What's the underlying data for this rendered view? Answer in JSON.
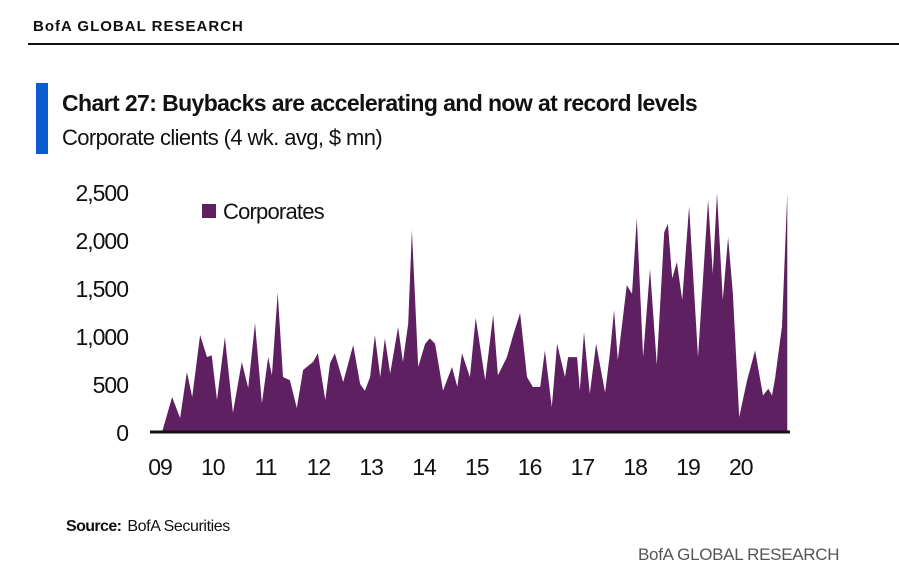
{
  "header": {
    "brand": "BofA GLOBAL RESEARCH"
  },
  "chart_title": "Chart 27: Buybacks are accelerating and now at record levels",
  "chart_subtitle": "Corporate clients (4 wk. avg, $ mn)",
  "source": {
    "label": "Source:",
    "text": "BofA Securities"
  },
  "footer": {
    "brand": "BofA GLOBAL RESEARCH"
  },
  "colors": {
    "series": "#5f2061",
    "accent": "#0a5cd2"
  },
  "chart_data": {
    "type": "area",
    "title": "Chart 27: Buybacks are accelerating and now at record levels",
    "subtitle": "Corporate clients (4 wk. avg, $ mn)",
    "xlabel": "",
    "ylabel": "",
    "ylim": [
      0,
      2500
    ],
    "xlim": [
      2009,
      2020.9
    ],
    "yticks": [
      0,
      500,
      1000,
      1500,
      2000,
      2500
    ],
    "ytick_labels": [
      "0",
      "500",
      "1,000",
      "1,500",
      "2,000",
      "2,500"
    ],
    "xtick_values": [
      2009,
      2010,
      2011,
      2012,
      2013,
      2014,
      2015,
      2016,
      2017,
      2018,
      2019,
      2020
    ],
    "xtick_labels": [
      "09",
      "10",
      "11",
      "12",
      "13",
      "14",
      "15",
      "16",
      "17",
      "18",
      "19",
      "20"
    ],
    "grid": false,
    "legend": {
      "position": "top-left",
      "entries": [
        "Corporates"
      ]
    },
    "series": [
      {
        "name": "Corporates",
        "x": [
          2009.04,
          2009.23,
          2009.38,
          2009.51,
          2009.61,
          2009.76,
          2009.89,
          2009.98,
          2010.08,
          2010.23,
          2010.38,
          2010.55,
          2010.67,
          2010.8,
          2010.93,
          2011.05,
          2011.12,
          2011.23,
          2011.33,
          2011.46,
          2011.59,
          2011.71,
          2011.9,
          2011.99,
          2012.13,
          2012.22,
          2012.31,
          2012.47,
          2012.66,
          2012.79,
          2012.88,
          2012.98,
          2013.07,
          2013.17,
          2013.26,
          2013.36,
          2013.51,
          2013.6,
          2013.7,
          2013.77,
          2013.89,
          2014.02,
          2014.11,
          2014.21,
          2014.36,
          2014.53,
          2014.63,
          2014.72,
          2014.87,
          2014.98,
          2015.16,
          2015.31,
          2015.4,
          2015.57,
          2015.69,
          2015.82,
          2015.95,
          2016.06,
          2016.2,
          2016.29,
          2016.42,
          2016.52,
          2016.67,
          2016.73,
          2016.9,
          2016.95,
          2017.03,
          2017.14,
          2017.26,
          2017.43,
          2017.52,
          2017.6,
          2017.67,
          2017.84,
          2017.94,
          2018.03,
          2018.15,
          2018.28,
          2018.41,
          2018.55,
          2018.62,
          2018.7,
          2018.79,
          2018.89,
          2019.02,
          2019.19,
          2019.38,
          2019.47,
          2019.55,
          2019.66,
          2019.76,
          2019.85,
          2019.97,
          2020.12,
          2020.27,
          2020.42,
          2020.52,
          2020.59,
          2020.65,
          2020.78,
          2020.88
        ],
        "values": [
          0,
          365,
          146,
          625,
          365,
          1010,
          780,
          800,
          333,
          990,
          200,
          730,
          458,
          1135,
          300,
          780,
          590,
          1450,
          573,
          540,
          250,
          646,
          730,
          820,
          333,
          715,
          820,
          520,
          906,
          500,
          430,
          573,
          1010,
          573,
          975,
          610,
          1094,
          730,
          1130,
          2104,
          677,
          920,
          975,
          920,
          430,
          677,
          470,
          820,
          573,
          1190,
          540,
          1220,
          590,
          780,
          1010,
          1240,
          573,
          470,
          470,
          850,
          260,
          920,
          573,
          780,
          780,
          430,
          1040,
          400,
          920,
          410,
          820,
          1270,
          750,
          1530,
          1440,
          2230,
          780,
          1700,
          700,
          2080,
          2170,
          1600,
          1770,
          1375,
          2350,
          780,
          2420,
          1650,
          2490,
          1375,
          2030,
          1440,
          156,
          540,
          850,
          380,
          450,
          380,
          560,
          1100,
          2490
        ]
      }
    ]
  }
}
